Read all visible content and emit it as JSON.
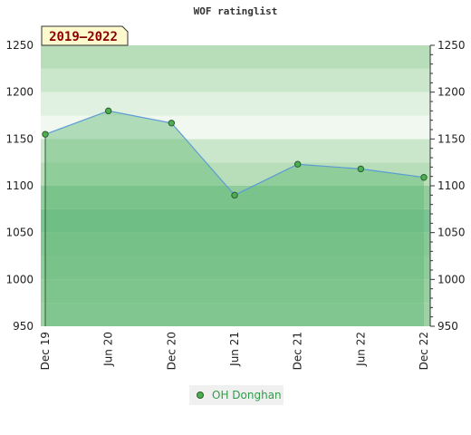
{
  "chart_data": {
    "type": "area",
    "title": "WOF ratinglist",
    "badge": "2019–2022",
    "x": [
      "Dec 19",
      "Jun 20",
      "Dec 20",
      "Jun 21",
      "Dec 21",
      "Jun 22",
      "Dec 22"
    ],
    "series": [
      {
        "name": "OH Donghan",
        "values": [
          1155,
          1180,
          1167,
          1090,
          1123,
          1118,
          1109
        ]
      }
    ],
    "ylim": [
      950,
      1250
    ],
    "yticks": [
      950,
      1000,
      1050,
      1100,
      1150,
      1200,
      1250
    ],
    "axis_left": true,
    "axis_right": true,
    "legend": "bottom-center",
    "colors": {
      "line": "#5b9bd5",
      "marker_fill": "#4caf50",
      "marker_stroke": "#2e5d30",
      "area": "#5fb776",
      "badge_bg": "#fffacd",
      "legend_text": "#2e9e4a"
    }
  }
}
